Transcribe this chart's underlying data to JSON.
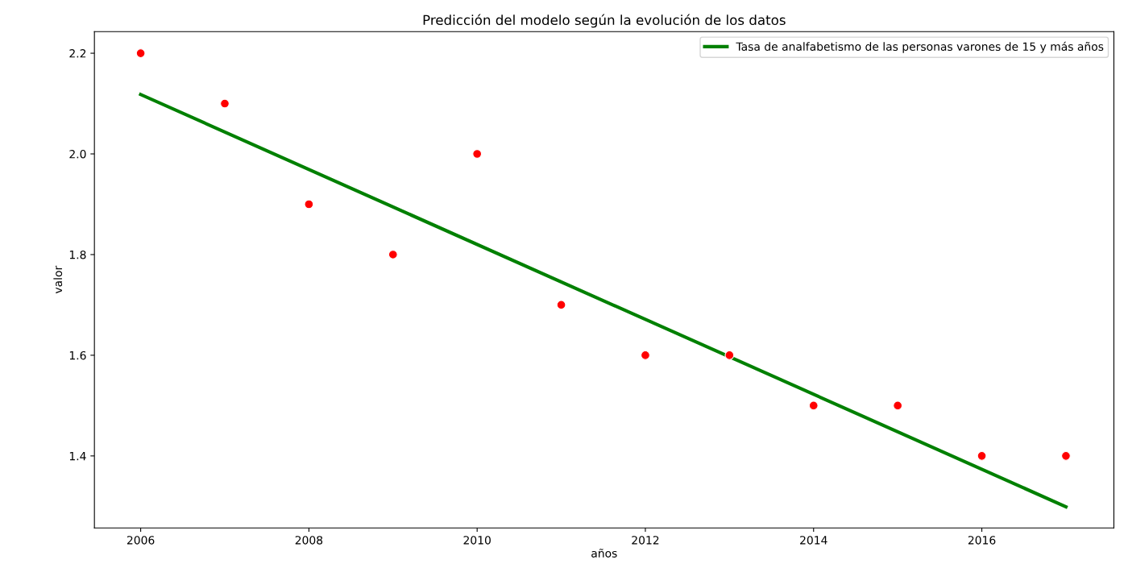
{
  "chart_data": {
    "type": "scatter",
    "title": "Predicción del modelo según la evolución de los datos",
    "xlabel": "años",
    "ylabel": "valor",
    "series": [
      {
        "color": "#ff0000",
        "marker": "circle",
        "x": [
          2006,
          2007,
          2008,
          2009,
          2010,
          2011,
          2012,
          2013,
          2014,
          2015,
          2016,
          2017
        ],
        "values": [
          2.2,
          2.1,
          1.9,
          1.8,
          2.0,
          1.7,
          1.6,
          1.6,
          1.5,
          1.5,
          1.4,
          1.4
        ]
      },
      {
        "type": "line",
        "name": "Tasa de analfabetismo de las personas varones de 15 y más años",
        "color": "#008000",
        "marker": "none",
        "line_style": "solid",
        "x": [
          2006,
          2017
        ],
        "values": [
          2.118,
          1.299
        ]
      }
    ],
    "xlim": [
      2005.45,
      2017.57
    ],
    "ylim": [
      1.257,
      2.243
    ],
    "xticks": [
      2006,
      2008,
      2010,
      2012,
      2014,
      2016
    ],
    "yticks": [
      {
        "value": 1.4,
        "label": "1.4"
      },
      {
        "value": 1.6,
        "label": "1.6"
      },
      {
        "value": 1.8,
        "label": "1.8"
      },
      {
        "value": 2.0,
        "label": "2.0"
      },
      {
        "value": 2.2,
        "label": "2.2"
      }
    ],
    "grid": false,
    "legend": "top right"
  }
}
